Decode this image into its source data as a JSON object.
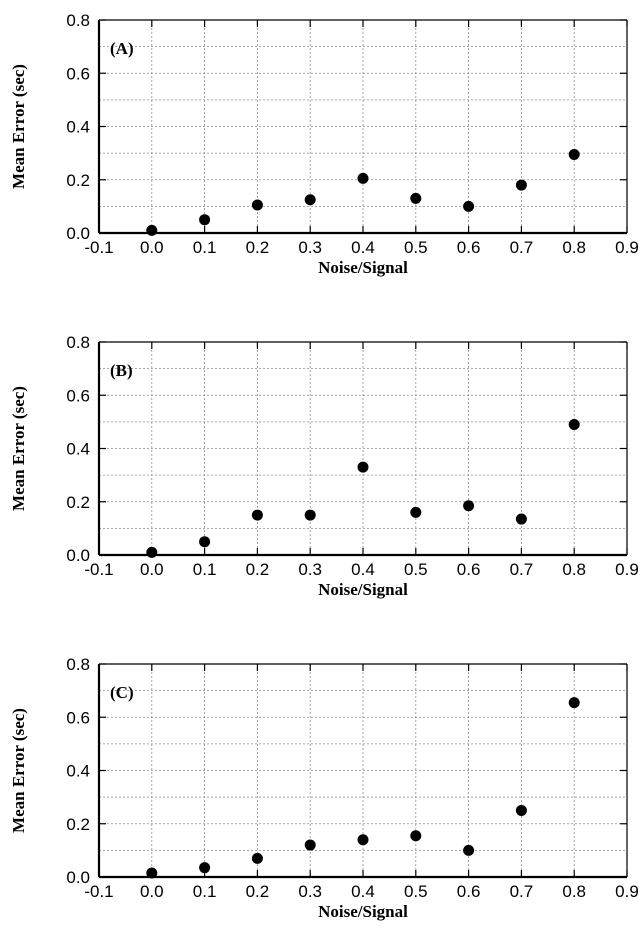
{
  "chart_data": [
    {
      "type": "scatter",
      "panel_label": "(A)",
      "xlabel": "Noise/Signal",
      "ylabel": "Mean Error (sec)",
      "xlim": [
        -0.1,
        0.9
      ],
      "ylim": [
        0.0,
        0.8
      ],
      "xticks": [
        "-0.1",
        "0.0",
        "0.1",
        "0.2",
        "0.3",
        "0.4",
        "0.5",
        "0.6",
        "0.7",
        "0.8",
        "0.9"
      ],
      "yticks": [
        "0.0",
        "0.2",
        "0.4",
        "0.6",
        "0.8"
      ],
      "grid": true,
      "marker_color": "#000000",
      "x": [
        0.0,
        0.1,
        0.2,
        0.3,
        0.4,
        0.5,
        0.6,
        0.7,
        0.8
      ],
      "y": [
        0.01,
        0.05,
        0.105,
        0.125,
        0.205,
        0.13,
        0.1,
        0.18,
        0.295
      ]
    },
    {
      "type": "scatter",
      "panel_label": "(B)",
      "xlabel": "Noise/Signal",
      "ylabel": "Mean Error (sec)",
      "xlim": [
        -0.1,
        0.9
      ],
      "ylim": [
        0.0,
        0.8
      ],
      "xticks": [
        "-0.1",
        "0.0",
        "0.1",
        "0.2",
        "0.3",
        "0.4",
        "0.5",
        "0.6",
        "0.7",
        "0.8",
        "0.9"
      ],
      "yticks": [
        "0.0",
        "0.2",
        "0.4",
        "0.6",
        "0.8"
      ],
      "grid": true,
      "marker_color": "#000000",
      "x": [
        0.0,
        0.1,
        0.2,
        0.3,
        0.4,
        0.5,
        0.6,
        0.7,
        0.8
      ],
      "y": [
        0.01,
        0.05,
        0.15,
        0.15,
        0.33,
        0.16,
        0.185,
        0.135,
        0.49
      ]
    },
    {
      "type": "scatter",
      "panel_label": "(C)",
      "xlabel": "Noise/Signal",
      "ylabel": "Mean Error (sec)",
      "xlim": [
        -0.1,
        0.9
      ],
      "ylim": [
        0.0,
        0.8
      ],
      "xticks": [
        "-0.1",
        "0.0",
        "0.1",
        "0.2",
        "0.3",
        "0.4",
        "0.5",
        "0.6",
        "0.7",
        "0.8",
        "0.9"
      ],
      "yticks": [
        "0.0",
        "0.2",
        "0.4",
        "0.6",
        "0.8"
      ],
      "grid": true,
      "marker_color": "#000000",
      "x": [
        0.0,
        0.1,
        0.2,
        0.3,
        0.4,
        0.5,
        0.6,
        0.7,
        0.8
      ],
      "y": [
        0.015,
        0.035,
        0.07,
        0.12,
        0.14,
        0.155,
        0.1,
        0.25,
        0.655
      ]
    }
  ]
}
